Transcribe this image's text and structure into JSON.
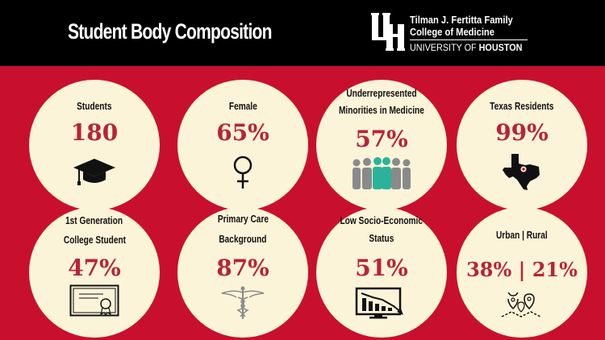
{
  "header": {
    "title": "Student Body Composition",
    "logo": {
      "line1": "Tilman J. Fertitta Family",
      "line2": "College of Medicine",
      "line3_a": "UNIVERSITY OF ",
      "line3_b": "HOUSTON"
    }
  },
  "colors": {
    "background": "#c8102e",
    "header": "#000000",
    "circle": "#fcf4d9",
    "value": "#b8233a"
  },
  "stats": [
    {
      "label_lines": [
        "Students"
      ],
      "value": "180",
      "icon": "graduation-cap-icon"
    },
    {
      "label_lines": [
        "Female"
      ],
      "value": "65%",
      "icon": "female-symbol-icon"
    },
    {
      "label_lines": [
        "Underrepresented",
        "Minorities in Medicine"
      ],
      "value": "57%",
      "icon": "people-group-icon"
    },
    {
      "label_lines": [
        "Texas Residents"
      ],
      "value": "99%",
      "icon": "texas-map-icon"
    },
    {
      "label_lines": [
        "1st Generation",
        "College Student"
      ],
      "value": "47%",
      "icon": "certificate-icon"
    },
    {
      "label_lines": [
        "Primary Care",
        "Background"
      ],
      "value": "87%",
      "icon": "caduceus-icon"
    },
    {
      "label_lines": [
        "Low Socio-Economic",
        "Status"
      ],
      "value": "51%",
      "icon": "declining-chart-monitor-icon"
    },
    {
      "label_lines": [
        "Urban | Rural"
      ],
      "value": "38% | 21%",
      "icon": "map-pins-icon"
    }
  ]
}
